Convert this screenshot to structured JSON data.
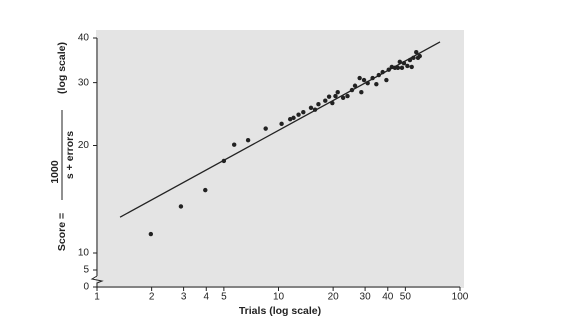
{
  "chart_data": {
    "type": "scatter",
    "x_label": "Trials (log scale)",
    "y_label_prefix": "Score =",
    "y_label_numerator": "1000",
    "y_label_denominator": "s + errors",
    "y_label_scale": "(log scale)",
    "xscale": "log",
    "yscale": "log",
    "ybreak": true,
    "xlim": [
      1,
      100
    ],
    "ylim": [
      0,
      40
    ],
    "xticks": [
      1,
      2,
      3,
      4,
      5,
      10,
      20,
      30,
      40,
      50,
      100
    ],
    "yticks": [
      0,
      5,
      10,
      20,
      30,
      40
    ],
    "color": "#222222",
    "x": [
      1.98,
      2.9,
      3.95,
      5,
      5.7,
      6.8,
      8.5,
      10.4,
      11.6,
      12.1,
      12.9,
      13.7,
      15.1,
      15.9,
      16.6,
      18.1,
      19.0,
      19.8,
      20.6,
      21.2,
      22.7,
      24,
      25.4,
      26.4,
      28,
      28.6,
      29.6,
      31,
      33,
      34.6,
      35.7,
      37.5,
      39.3,
      40.5,
      42.1,
      43.8,
      45.5,
      46.6,
      47.9,
      49.1,
      51.3,
      53,
      54.2,
      55.4,
      57.4,
      58.7,
      60
    ],
    "values": [
      11.3,
      13.5,
      15.0,
      18.1,
      20.1,
      20.7,
      22.3,
      23.0,
      23.7,
      23.9,
      24.4,
      24.8,
      25.5,
      25.2,
      26.1,
      26.7,
      27.4,
      26.3,
      27.5,
      28.2,
      27.2,
      27.5,
      28.6,
      29.4,
      30.9,
      28.2,
      30.5,
      29.9,
      30.9,
      29.7,
      31.5,
      32.1,
      30.5,
      32.6,
      33.2,
      33.0,
      33.0,
      34.3,
      33.0,
      34.0,
      33.4,
      34.7,
      33.2,
      35.2,
      36.5,
      35.2,
      35.6
    ],
    "fit_line": {
      "x": [
        1.34,
        77.6
      ],
      "y": [
        12.6,
        39.0
      ]
    }
  }
}
